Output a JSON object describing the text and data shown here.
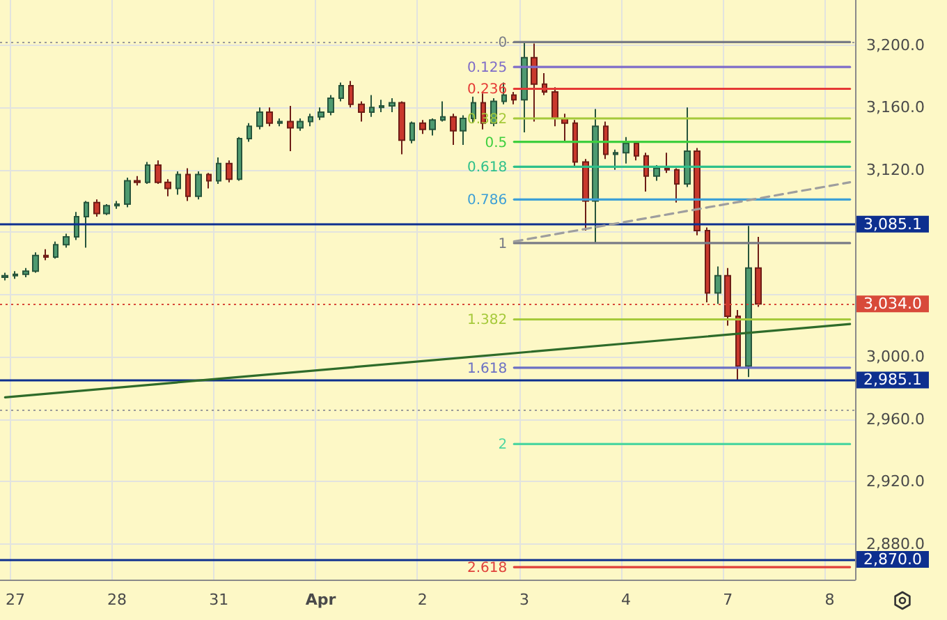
{
  "chart_data": {
    "type": "candlestick",
    "categories": [
      null,
      "27",
      null,
      null,
      null,
      null,
      null,
      null,
      null,
      null,
      null,
      "28",
      null,
      null,
      null,
      null,
      null,
      null,
      null,
      null,
      null,
      "31",
      null,
      null,
      null,
      null,
      null,
      null,
      null,
      null,
      null,
      "Apr",
      null,
      null,
      null,
      null,
      null,
      null,
      null,
      null,
      null,
      "2",
      null,
      null,
      null,
      null,
      null,
      null,
      null,
      null,
      null,
      "3",
      null,
      null,
      null,
      null,
      null,
      null,
      null,
      null,
      null,
      "4",
      null,
      null,
      null,
      null,
      null,
      null,
      null,
      null,
      null,
      "7",
      null,
      null,
      null,
      null,
      null,
      null,
      null,
      null,
      null,
      "8",
      null,
      null
    ],
    "ohlc": [
      [
        3051,
        3054,
        3049,
        3052
      ],
      [
        3052,
        3055,
        3050,
        3053
      ],
      [
        3053,
        3057,
        3051,
        3055
      ],
      [
        3055,
        3067,
        3054,
        3065
      ],
      [
        3065,
        3069,
        3062,
        3064
      ],
      [
        3064,
        3074,
        3063,
        3072
      ],
      [
        3072,
        3079,
        3070,
        3077
      ],
      [
        3077,
        3093,
        3075,
        3090
      ],
      [
        3090,
        3100,
        3070,
        3099
      ],
      [
        3099,
        3101,
        3090,
        3092
      ],
      [
        3092,
        3098,
        3091,
        3097
      ],
      [
        3097,
        3100,
        3095,
        3098
      ],
      [
        3098,
        3115,
        3096,
        3113
      ],
      [
        3113,
        3116,
        3110,
        3112
      ],
      [
        3112,
        3125,
        3111,
        3123
      ],
      [
        3123,
        3126,
        3111,
        3112
      ],
      [
        3112,
        3114,
        3103,
        3108
      ],
      [
        3108,
        3119,
        3104,
        3117
      ],
      [
        3117,
        3121,
        3100,
        3103
      ],
      [
        3103,
        3119,
        3101,
        3117
      ],
      [
        3117,
        3118,
        3108,
        3113
      ],
      [
        3113,
        3128,
        3111,
        3124
      ],
      [
        3124,
        3126,
        3112,
        3114
      ],
      [
        3114,
        3141,
        3113,
        3140
      ],
      [
        3140,
        3150,
        3138,
        3148
      ],
      [
        3148,
        3160,
        3146,
        3157
      ],
      [
        3157,
        3160,
        3148,
        3150
      ],
      [
        3150,
        3153,
        3148,
        3151
      ],
      [
        3151,
        3161,
        3132,
        3147
      ],
      [
        3147,
        3153,
        3145,
        3151
      ],
      [
        3151,
        3156,
        3148,
        3154
      ],
      [
        3154,
        3160,
        3152,
        3157
      ],
      [
        3157,
        3168,
        3155,
        3166
      ],
      [
        3166,
        3176,
        3164,
        3174
      ],
      [
        3174,
        3177,
        3160,
        3162
      ],
      [
        3162,
        3164,
        3151,
        3157
      ],
      [
        3157,
        3168,
        3154,
        3160
      ],
      [
        3160,
        3165,
        3157,
        3161
      ],
      [
        3161,
        3166,
        3157,
        3163
      ],
      [
        3163,
        3164,
        3130,
        3139
      ],
      [
        3139,
        3151,
        3137,
        3150
      ],
      [
        3150,
        3152,
        3143,
        3146
      ],
      [
        3146,
        3153,
        3142,
        3152
      ],
      [
        3152,
        3164,
        3151,
        3154
      ],
      [
        3154,
        3156,
        3136,
        3145
      ],
      [
        3145,
        3155,
        3136,
        3153
      ],
      [
        3153,
        3167,
        3150,
        3163
      ],
      [
        3163,
        3169,
        3146,
        3150
      ],
      [
        3150,
        3166,
        3148,
        3164
      ],
      [
        3164,
        3176,
        3162,
        3168
      ],
      [
        3168,
        3170,
        3162,
        3165
      ],
      [
        3165,
        3202,
        3144,
        3192
      ],
      [
        3192,
        3201,
        3151,
        3175
      ],
      [
        3175,
        3182,
        3168,
        3170
      ],
      [
        3170,
        3173,
        3148,
        3153
      ],
      [
        3153,
        3156,
        3138,
        3150
      ],
      [
        3150,
        3152,
        3122,
        3125
      ],
      [
        3125,
        3127,
        3081,
        3100
      ],
      [
        3100,
        3159,
        3073,
        3148
      ],
      [
        3148,
        3151,
        3127,
        3130
      ],
      [
        3130,
        3133,
        3120,
        3131
      ],
      [
        3131,
        3141,
        3124,
        3137
      ],
      [
        3137,
        3138,
        3126,
        3129
      ],
      [
        3129,
        3131,
        3106,
        3116
      ],
      [
        3116,
        3123,
        3113,
        3121
      ],
      [
        3121,
        3131,
        3118,
        3120
      ],
      [
        3120,
        3121,
        3099,
        3111
      ],
      [
        3111,
        3160,
        3109,
        3132
      ],
      [
        3132,
        3134,
        3078,
        3081
      ],
      [
        3081,
        3083,
        3035,
        3041
      ],
      [
        3041,
        3058,
        3034,
        3052
      ],
      [
        3052,
        3057,
        3020,
        3026
      ],
      [
        3026,
        3030,
        2985,
        2994
      ],
      [
        2994,
        3084,
        2987,
        3057
      ],
      [
        3057,
        3077,
        3032,
        3034
      ],
      null,
      null,
      null,
      null,
      null,
      null,
      null,
      null,
      null
    ],
    "ylim": [
      2857,
      3229
    ],
    "yticks": [
      {
        "value": 2880,
        "label": "2,880.0"
      },
      {
        "value": 2920,
        "label": "2,920.0"
      },
      {
        "value": 2960,
        "label": "2,960.0"
      },
      {
        "value": 3000,
        "label": "3,000.0"
      },
      {
        "value": 3040,
        "label": null
      },
      {
        "value": 3080,
        "label": null
      },
      {
        "value": 3120,
        "label": "3,120.0"
      },
      {
        "value": 3160,
        "label": "3,160.0"
      },
      {
        "value": 3200,
        "label": "3,200.0"
      }
    ],
    "grid": true,
    "series": [
      {
        "name": "0",
        "type": "line",
        "color": "#787b86",
        "values": [
          null,
          null,
          null,
          null,
          null,
          null,
          null,
          null,
          null,
          null,
          null,
          null,
          null,
          null,
          null,
          null,
          null,
          null,
          null,
          null,
          null,
          null,
          null,
          null,
          null,
          null,
          null,
          null,
          null,
          null,
          null,
          null,
          null,
          null,
          null,
          null,
          null,
          null,
          null,
          null,
          null,
          null,
          null,
          null,
          null,
          null,
          null,
          null,
          null,
          null,
          3202,
          3202,
          3202,
          3202,
          3202,
          3202,
          3202,
          3202,
          3202,
          3202,
          3202,
          3202,
          3202,
          3202,
          3202,
          3202,
          3202,
          3202,
          3202,
          3202,
          3202,
          3202,
          3202,
          3202,
          3202,
          3202,
          3202,
          3202,
          3202,
          3202,
          3202,
          3202,
          3202,
          3202
        ]
      },
      {
        "name": "0.125",
        "type": "line",
        "color": "#7e6cc8",
        "values": [
          null,
          null,
          null,
          null,
          null,
          null,
          null,
          null,
          null,
          null,
          null,
          null,
          null,
          null,
          null,
          null,
          null,
          null,
          null,
          null,
          null,
          null,
          null,
          null,
          null,
          null,
          null,
          null,
          null,
          null,
          null,
          null,
          null,
          null,
          null,
          null,
          null,
          null,
          null,
          null,
          null,
          null,
          null,
          null,
          null,
          null,
          null,
          null,
          null,
          null,
          3186,
          3186,
          3186,
          3186,
          3186,
          3186,
          3186,
          3186,
          3186,
          3186,
          3186,
          3186,
          3186,
          3186,
          3186,
          3186,
          3186,
          3186,
          3186,
          3186,
          3186,
          3186,
          3186,
          3186,
          3186,
          3186,
          3186,
          3186,
          3186,
          3186,
          3186,
          3186,
          3186,
          3186
        ]
      },
      {
        "name": "0.236",
        "type": "line",
        "color": "#e53935",
        "values": [
          null,
          null,
          null,
          null,
          null,
          null,
          null,
          null,
          null,
          null,
          null,
          null,
          null,
          null,
          null,
          null,
          null,
          null,
          null,
          null,
          null,
          null,
          null,
          null,
          null,
          null,
          null,
          null,
          null,
          null,
          null,
          null,
          null,
          null,
          null,
          null,
          null,
          null,
          null,
          null,
          null,
          null,
          null,
          null,
          null,
          null,
          null,
          null,
          null,
          null,
          3172,
          3172,
          3172,
          3172,
          3172,
          3172,
          3172,
          3172,
          3172,
          3172,
          3172,
          3172,
          3172,
          3172,
          3172,
          3172,
          3172,
          3172,
          3172,
          3172,
          3172,
          3172,
          3172,
          3172,
          3172,
          3172,
          3172,
          3172,
          3172,
          3172,
          3172,
          3172,
          3172,
          3172
        ]
      },
      {
        "name": "0.382",
        "type": "line",
        "color": "#a5c93a",
        "values": [
          null,
          null,
          null,
          null,
          null,
          null,
          null,
          null,
          null,
          null,
          null,
          null,
          null,
          null,
          null,
          null,
          null,
          null,
          null,
          null,
          null,
          null,
          null,
          null,
          null,
          null,
          null,
          null,
          null,
          null,
          null,
          null,
          null,
          null,
          null,
          null,
          null,
          null,
          null,
          null,
          null,
          null,
          null,
          null,
          null,
          null,
          null,
          null,
          null,
          null,
          3153,
          3153,
          3153,
          3153,
          3153,
          3153,
          3153,
          3153,
          3153,
          3153,
          3153,
          3153,
          3153,
          3153,
          3153,
          3153,
          3153,
          3153,
          3153,
          3153,
          3153,
          3153,
          3153,
          3153,
          3153,
          3153,
          3153,
          3153,
          3153,
          3153,
          3153,
          3153,
          3153,
          3153
        ]
      },
      {
        "name": "0.5",
        "type": "line",
        "color": "#3fcf3f",
        "values": [
          null,
          null,
          null,
          null,
          null,
          null,
          null,
          null,
          null,
          null,
          null,
          null,
          null,
          null,
          null,
          null,
          null,
          null,
          null,
          null,
          null,
          null,
          null,
          null,
          null,
          null,
          null,
          null,
          null,
          null,
          null,
          null,
          null,
          null,
          null,
          null,
          null,
          null,
          null,
          null,
          null,
          null,
          null,
          null,
          null,
          null,
          null,
          null,
          null,
          null,
          3138,
          3138,
          3138,
          3138,
          3138,
          3138,
          3138,
          3138,
          3138,
          3138,
          3138,
          3138,
          3138,
          3138,
          3138,
          3138,
          3138,
          3138,
          3138,
          3138,
          3138,
          3138,
          3138,
          3138,
          3138,
          3138,
          3138,
          3138,
          3138,
          3138,
          3138,
          3138,
          3138,
          3138
        ]
      },
      {
        "name": "0.618",
        "type": "line",
        "color": "#2ec08a",
        "values": [
          null,
          null,
          null,
          null,
          null,
          null,
          null,
          null,
          null,
          null,
          null,
          null,
          null,
          null,
          null,
          null,
          null,
          null,
          null,
          null,
          null,
          null,
          null,
          null,
          null,
          null,
          null,
          null,
          null,
          null,
          null,
          null,
          null,
          null,
          null,
          null,
          null,
          null,
          null,
          null,
          null,
          null,
          null,
          null,
          null,
          null,
          null,
          null,
          null,
          null,
          3122,
          3122,
          3122,
          3122,
          3122,
          3122,
          3122,
          3122,
          3122,
          3122,
          3122,
          3122,
          3122,
          3122,
          3122,
          3122,
          3122,
          3122,
          3122,
          3122,
          3122,
          3122,
          3122,
          3122,
          3122,
          3122,
          3122,
          3122,
          3122,
          3122,
          3122,
          3122,
          3122,
          3122
        ]
      },
      {
        "name": "0.786",
        "type": "line",
        "color": "#3d9fd6",
        "values": [
          null,
          null,
          null,
          null,
          null,
          null,
          null,
          null,
          null,
          null,
          null,
          null,
          null,
          null,
          null,
          null,
          null,
          null,
          null,
          null,
          null,
          null,
          null,
          null,
          null,
          null,
          null,
          null,
          null,
          null,
          null,
          null,
          null,
          null,
          null,
          null,
          null,
          null,
          null,
          null,
          null,
          null,
          null,
          null,
          null,
          null,
          null,
          null,
          null,
          null,
          3101,
          3101,
          3101,
          3101,
          3101,
          3101,
          3101,
          3101,
          3101,
          3101,
          3101,
          3101,
          3101,
          3101,
          3101,
          3101,
          3101,
          3101,
          3101,
          3101,
          3101,
          3101,
          3101,
          3101,
          3101,
          3101,
          3101,
          3101,
          3101,
          3101,
          3101,
          3101,
          3101,
          3101
        ]
      },
      {
        "name": "1",
        "type": "line",
        "color": "#787b86",
        "values": [
          null,
          null,
          null,
          null,
          null,
          null,
          null,
          null,
          null,
          null,
          null,
          null,
          null,
          null,
          null,
          null,
          null,
          null,
          null,
          null,
          null,
          null,
          null,
          null,
          null,
          null,
          null,
          null,
          null,
          null,
          null,
          null,
          null,
          null,
          null,
          null,
          null,
          null,
          null,
          null,
          null,
          null,
          null,
          null,
          null,
          null,
          null,
          null,
          null,
          null,
          3073,
          3073,
          3073,
          3073,
          3073,
          3073,
          3073,
          3073,
          3073,
          3073,
          3073,
          3073,
          3073,
          3073,
          3073,
          3073,
          3073,
          3073,
          3073,
          3073,
          3073,
          3073,
          3073,
          3073,
          3073,
          3073,
          3073,
          3073,
          3073,
          3073,
          3073,
          3073,
          3073,
          3073
        ]
      },
      {
        "name": "1.382",
        "type": "line",
        "color": "#a5c93a",
        "values": [
          null,
          null,
          null,
          null,
          null,
          null,
          null,
          null,
          null,
          null,
          null,
          null,
          null,
          null,
          null,
          null,
          null,
          null,
          null,
          null,
          null,
          null,
          null,
          null,
          null,
          null,
          null,
          null,
          null,
          null,
          null,
          null,
          null,
          null,
          null,
          null,
          null,
          null,
          null,
          null,
          null,
          null,
          null,
          null,
          null,
          null,
          null,
          null,
          null,
          null,
          3024,
          3024,
          3024,
          3024,
          3024,
          3024,
          3024,
          3024,
          3024,
          3024,
          3024,
          3024,
          3024,
          3024,
          3024,
          3024,
          3024,
          3024,
          3024,
          3024,
          3024,
          3024,
          3024,
          3024,
          3024,
          3024,
          3024,
          3024,
          3024,
          3024,
          3024,
          3024,
          3024,
          3024
        ]
      },
      {
        "name": "1.618",
        "type": "line",
        "color": "#6a6fc4",
        "values": [
          null,
          null,
          null,
          null,
          null,
          null,
          null,
          null,
          null,
          null,
          null,
          null,
          null,
          null,
          null,
          null,
          null,
          null,
          null,
          null,
          null,
          null,
          null,
          null,
          null,
          null,
          null,
          null,
          null,
          null,
          null,
          null,
          null,
          null,
          null,
          null,
          null,
          null,
          null,
          null,
          null,
          null,
          null,
          null,
          null,
          null,
          null,
          null,
          null,
          null,
          2993,
          2993,
          2993,
          2993,
          2993,
          2993,
          2993,
          2993,
          2993,
          2993,
          2993,
          2993,
          2993,
          2993,
          2993,
          2993,
          2993,
          2993,
          2993,
          2993,
          2993,
          2993,
          2993,
          2993,
          2993,
          2993,
          2993,
          2993,
          2993,
          2993,
          2993,
          2993,
          2993,
          2993
        ]
      },
      {
        "name": "2",
        "type": "line",
        "color": "#4ed6a0",
        "values": [
          null,
          null,
          null,
          null,
          null,
          null,
          null,
          null,
          null,
          null,
          null,
          null,
          null,
          null,
          null,
          null,
          null,
          null,
          null,
          null,
          null,
          null,
          null,
          null,
          null,
          null,
          null,
          null,
          null,
          null,
          null,
          null,
          null,
          null,
          null,
          null,
          null,
          null,
          null,
          null,
          null,
          null,
          null,
          null,
          null,
          null,
          null,
          null,
          null,
          null,
          2944,
          2944,
          2944,
          2944,
          2944,
          2944,
          2944,
          2944,
          2944,
          2944,
          2944,
          2944,
          2944,
          2944,
          2944,
          2944,
          2944,
          2944,
          2944,
          2944,
          2944,
          2944,
          2944,
          2944,
          2944,
          2944,
          2944,
          2944,
          2944,
          2944,
          2944,
          2944,
          2944,
          2944
        ]
      },
      {
        "name": "2.618",
        "type": "line",
        "color": "#e0403a",
        "values": [
          null,
          null,
          null,
          null,
          null,
          null,
          null,
          null,
          null,
          null,
          null,
          null,
          null,
          null,
          null,
          null,
          null,
          null,
          null,
          null,
          null,
          null,
          null,
          null,
          null,
          null,
          null,
          null,
          null,
          null,
          null,
          null,
          null,
          null,
          null,
          null,
          null,
          null,
          null,
          null,
          null,
          null,
          null,
          null,
          null,
          null,
          null,
          null,
          null,
          null,
          2865,
          2865,
          2865,
          2865,
          2865,
          2865,
          2865,
          2865,
          2865,
          2865,
          2865,
          2865,
          2865,
          2865,
          2865,
          2865,
          2865,
          2865,
          2865,
          2865,
          2865,
          2865,
          2865,
          2865,
          2865,
          2865,
          2865,
          2865,
          2865,
          2865,
          2865,
          2865,
          2865,
          2865
        ]
      },
      {
        "type": "line",
        "color": "#9e9e9e",
        "line_style": "dashed",
        "values": [
          null,
          null,
          null,
          null,
          null,
          null,
          null,
          null,
          null,
          null,
          null,
          null,
          null,
          null,
          null,
          null,
          null,
          null,
          null,
          null,
          null,
          null,
          null,
          null,
          null,
          null,
          null,
          null,
          null,
          null,
          null,
          null,
          null,
          null,
          null,
          null,
          null,
          null,
          null,
          null,
          null,
          null,
          null,
          null,
          null,
          null,
          null,
          null,
          null,
          null,
          3074,
          null,
          null,
          null,
          null,
          null,
          null,
          null,
          null,
          null,
          null,
          null,
          null,
          null,
          null,
          null,
          null,
          null,
          null,
          null,
          null,
          null,
          null,
          null,
          null,
          null,
          null,
          null,
          null,
          null,
          null,
          null,
          null,
          3112
        ]
      },
      {
        "type": "line",
        "color": "#2e6b2a",
        "values": [
          2974,
          null,
          null,
          null,
          null,
          null,
          null,
          null,
          null,
          null,
          null,
          null,
          null,
          null,
          null,
          null,
          null,
          null,
          null,
          null,
          null,
          null,
          null,
          null,
          null,
          null,
          null,
          null,
          null,
          null,
          null,
          null,
          null,
          null,
          null,
          null,
          null,
          null,
          null,
          null,
          null,
          null,
          null,
          null,
          null,
          null,
          null,
          null,
          null,
          null,
          null,
          null,
          null,
          null,
          null,
          null,
          null,
          null,
          null,
          null,
          null,
          null,
          null,
          null,
          null,
          null,
          null,
          null,
          null,
          null,
          null,
          null,
          null,
          null,
          null,
          null,
          null,
          null,
          null,
          null,
          null,
          null,
          null,
          3021
        ]
      }
    ],
    "ref_lines": [
      {
        "axis": "y",
        "value": 3202,
        "color": "#9a9a9a",
        "line_style": "dotted"
      },
      {
        "axis": "y",
        "value": 3085.1,
        "label": "3,085.1",
        "color": "#0d2f8f"
      },
      {
        "axis": "y",
        "value": 3034.0,
        "label": "3,034.0",
        "color": "#d84a3a",
        "line_style": "dotted"
      },
      {
        "axis": "y",
        "value": 2985.1,
        "label": "2,985.1",
        "color": "#0d2f8f"
      },
      {
        "axis": "y",
        "value": 2966,
        "color": "#9a9a9a",
        "line_style": "dotted"
      },
      {
        "axis": "y",
        "value": 2870.0,
        "label": "2,870.0",
        "color": "#0d2f8f"
      }
    ]
  }
}
